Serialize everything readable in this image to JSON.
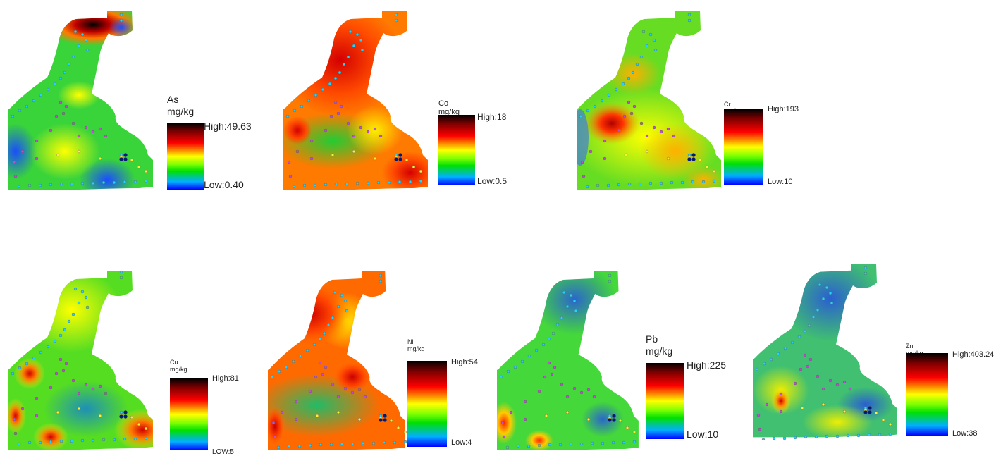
{
  "panels": [
    {
      "element": "As",
      "unit": "mg/kg",
      "high": "High:49.63",
      "low": "Low:0.40"
    },
    {
      "element": "Co",
      "unit": "mg/kg",
      "high": "High:18",
      "low": "Low:0.5"
    },
    {
      "element": "Cr",
      "unit": "mg/kg",
      "high": "High:193",
      "low": "Low:10"
    },
    {
      "element": "Cu",
      "unit": "mg/kg",
      "high": "High:81",
      "low": "LOW:5"
    },
    {
      "element": "Ni",
      "unit": "mg/kg",
      "high": "High:54",
      "low": "Low:4"
    },
    {
      "element": "Pb",
      "unit": "mg/kg",
      "high": "High:225",
      "low": "Low:10"
    },
    {
      "element": "Zn",
      "unit": "mg/kg",
      "high": "High:403.24",
      "low": "Low:38"
    }
  ],
  "colors": {
    "high": "#000000",
    "mid_high": "#ff0000",
    "mid": "#ffff00",
    "mid_low": "#00d000",
    "low": "#0000ff"
  }
}
